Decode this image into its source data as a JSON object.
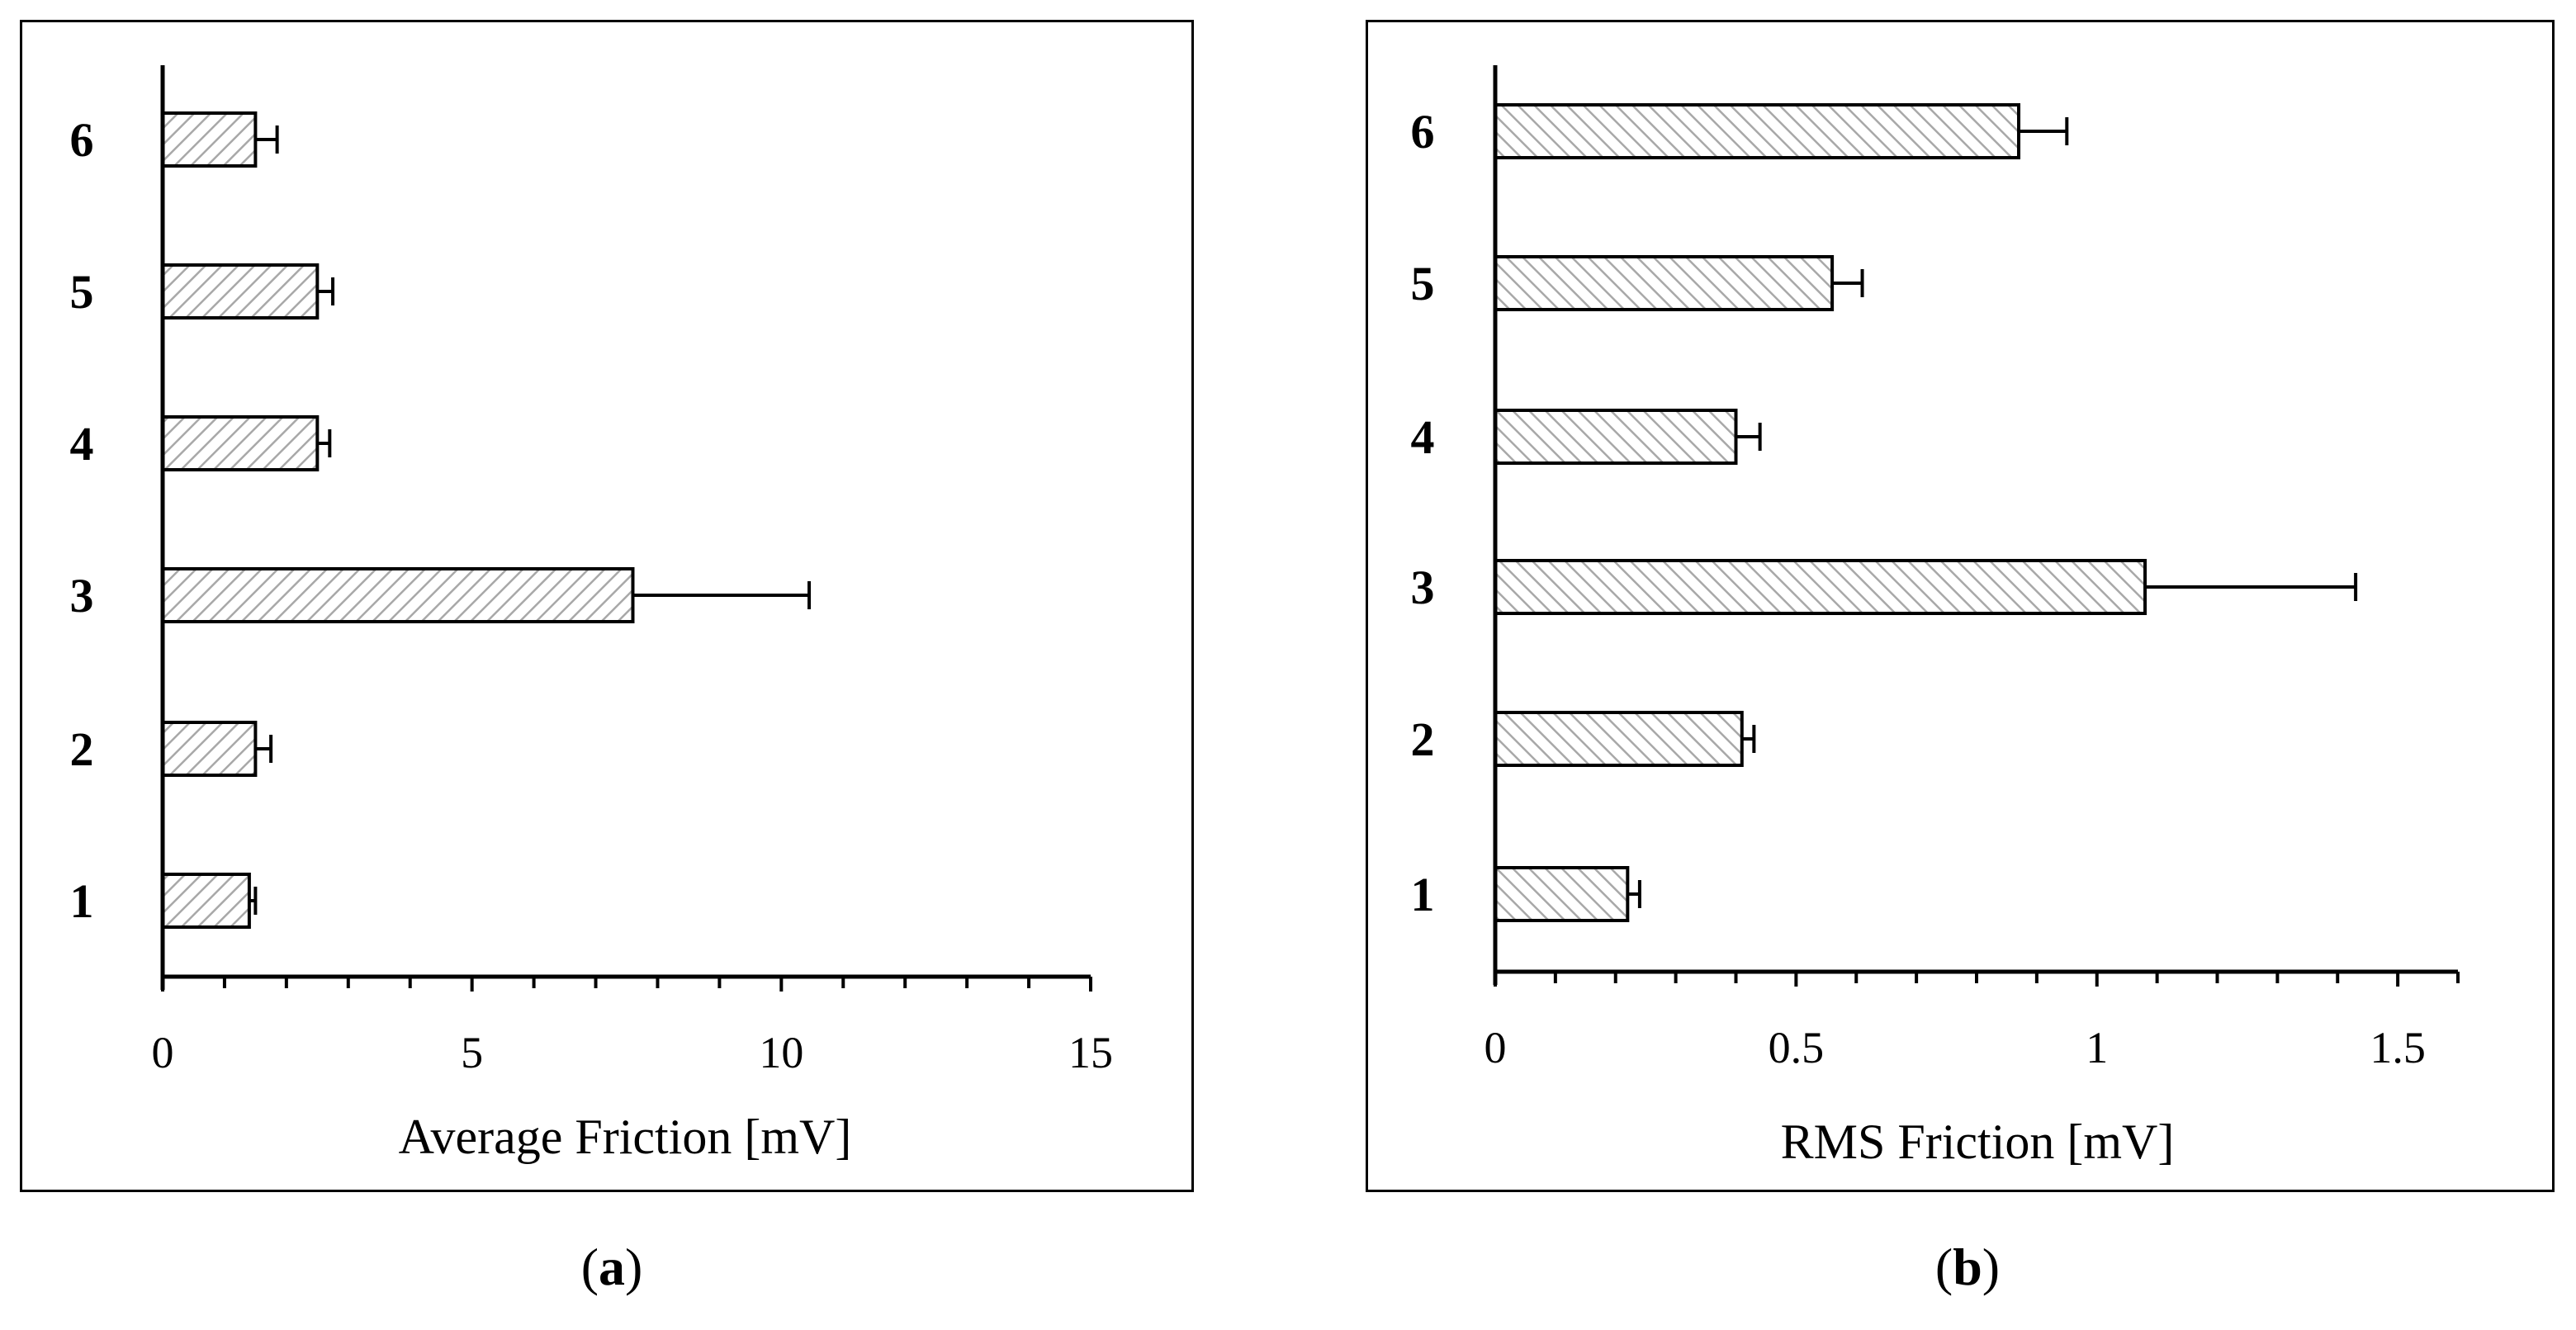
{
  "chart_data": [
    {
      "type": "bar",
      "orientation": "horizontal",
      "categories": [
        "1",
        "2",
        "3",
        "4",
        "5",
        "6"
      ],
      "values": [
        1.4,
        1.5,
        7.6,
        2.5,
        2.5,
        1.5
      ],
      "errors": [
        0.1,
        0.25,
        2.85,
        0.2,
        0.25,
        0.35
      ],
      "xlabel": "Average Friction [mV]",
      "xlim": [
        0,
        15
      ],
      "xticks": [
        "0",
        "5",
        "10",
        "15"
      ],
      "xtick_values": [
        0,
        5,
        10,
        15
      ],
      "minor_ticks_per_major": 5,
      "caption_letter": "a"
    },
    {
      "type": "bar",
      "orientation": "horizontal",
      "categories": [
        "1",
        "2",
        "3",
        "4",
        "5",
        "6"
      ],
      "values": [
        0.22,
        0.41,
        1.08,
        0.4,
        0.56,
        0.87
      ],
      "errors": [
        0.02,
        0.02,
        0.35,
        0.04,
        0.05,
        0.08
      ],
      "xlabel": "RMS Friction [mV]",
      "xlim": [
        0,
        1.6
      ],
      "xticks": [
        "0",
        "0.5",
        "1",
        "1.5"
      ],
      "xtick_values": [
        0,
        0.5,
        1,
        1.5
      ],
      "minor_ticks_per_major": 5,
      "caption_letter": "b"
    }
  ],
  "colors": {
    "bar_fill": "#ffffff",
    "hatch": "#a8a8a8",
    "axis": "#000000"
  }
}
